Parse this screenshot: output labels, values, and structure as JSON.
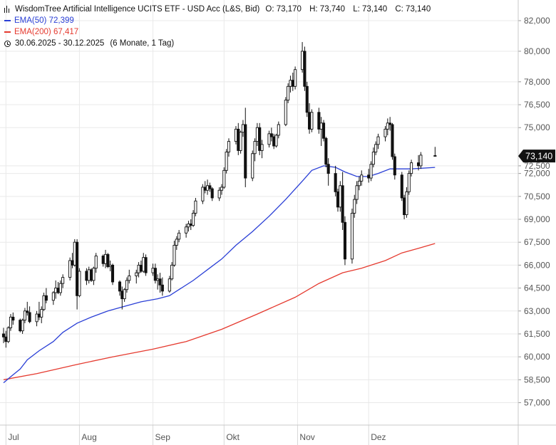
{
  "legend": {
    "instrument": "WisdomTree Artificial Intelligence UCITS ETF - USD Acc (L&S, Bid)",
    "ohlc": {
      "open": "O: 73,170",
      "high": "H: 73,740",
      "low": "L: 73,140",
      "close": "C: 73,140"
    },
    "ema50_label": "EMA(50)",
    "ema50_value": "72,399",
    "ema200_label": "EMA(200)",
    "ema200_value": "67,417",
    "date_range": "30.06.2025 - 30.12.2025",
    "period": "(6 Monate, 1 Tag)"
  },
  "colors": {
    "ema50": "#2a3fd6",
    "ema200": "#e53a2f",
    "candle": "#111111",
    "grid": "#e9e9e9",
    "price_badge": "#111111"
  },
  "icons": {
    "candles": "candlestick-icon",
    "clock": "clock-icon"
  },
  "chart_data": {
    "type": "candlestick",
    "y_axis_position": "right",
    "ylim": [
      56000,
      82700
    ],
    "y_ticks": [
      57000,
      58500,
      60000,
      61500,
      63000,
      64500,
      66000,
      67500,
      69000,
      70500,
      72000,
      72500,
      75000,
      76500,
      78000,
      80000,
      82000
    ],
    "y_tick_labels": [
      "57,000",
      "58,500",
      "60,000",
      "61,500",
      "63,000",
      "64,500",
      "66,000",
      "67,500",
      "69,000",
      "70,500",
      "72,000",
      "72,500",
      "75,000",
      "76,500",
      "78,000",
      "80,000",
      "82,000"
    ],
    "x_ticks": [
      "2025-07-01",
      "2025-08-01",
      "2025-09-01",
      "2025-10-01",
      "2025-11-01",
      "2025-12-01"
    ],
    "x_tick_labels": [
      "Jul",
      "Aug",
      "Sep",
      "Okt",
      "Nov",
      "Dez"
    ],
    "x_range": [
      "2025-06-30",
      "2025-12-31"
    ],
    "last_price": 73140,
    "last_price_label": "73,140",
    "grid": true,
    "candles_ohlc": [
      [
        "2025-06-30",
        61500,
        61900,
        60900,
        61300
      ],
      [
        "2025-07-01",
        61300,
        61700,
        60600,
        61000
      ],
      [
        "2025-07-02",
        61000,
        62000,
        60900,
        61900
      ],
      [
        "2025-07-03",
        61900,
        62800,
        61700,
        62600
      ],
      [
        "2025-07-04",
        62600,
        62900,
        62100,
        62400
      ],
      [
        "2025-07-07",
        62400,
        62500,
        61600,
        61700
      ],
      [
        "2025-07-08",
        61700,
        62500,
        61500,
        62400
      ],
      [
        "2025-07-09",
        62400,
        63200,
        62200,
        63000
      ],
      [
        "2025-07-10",
        63000,
        63600,
        62700,
        62900
      ],
      [
        "2025-07-11",
        62900,
        63300,
        62200,
        62300
      ],
      [
        "2025-07-14",
        62300,
        63000,
        62000,
        62800
      ],
      [
        "2025-07-15",
        62800,
        63600,
        62400,
        62600
      ],
      [
        "2025-07-16",
        62600,
        63300,
        62200,
        63100
      ],
      [
        "2025-07-17",
        63100,
        64200,
        63000,
        64000
      ],
      [
        "2025-07-18",
        64000,
        64500,
        63500,
        63700
      ],
      [
        "2025-07-21",
        63700,
        64300,
        63400,
        64200
      ],
      [
        "2025-07-22",
        64200,
        65000,
        63800,
        64500
      ],
      [
        "2025-07-23",
        64500,
        64900,
        64100,
        64200
      ],
      [
        "2025-07-24",
        64200,
        65000,
        64000,
        64800
      ],
      [
        "2025-07-25",
        64800,
        65400,
        64500,
        65200
      ],
      [
        "2025-07-28",
        65200,
        66500,
        65000,
        66300
      ],
      [
        "2025-07-29",
        66300,
        66800,
        65800,
        66000
      ],
      [
        "2025-07-30",
        66000,
        67700,
        65900,
        67500
      ],
      [
        "2025-07-31",
        67500,
        67700,
        63100,
        64000
      ],
      [
        "2025-08-01",
        64000,
        65800,
        63900,
        65600
      ],
      [
        "2025-08-04",
        65600,
        65800,
        64700,
        65000
      ],
      [
        "2025-08-05",
        65000,
        65900,
        64800,
        65700
      ],
      [
        "2025-08-06",
        65700,
        65800,
        64900,
        65000
      ],
      [
        "2025-08-07",
        65000,
        65900,
        64700,
        65800
      ],
      [
        "2025-08-08",
        65800,
        66800,
        65500,
        66600
      ],
      [
        "2025-08-11",
        66600,
        66700,
        65900,
        66100
      ],
      [
        "2025-08-12",
        66100,
        67000,
        65800,
        66700
      ],
      [
        "2025-08-13",
        66700,
        66800,
        65800,
        65900
      ],
      [
        "2025-08-14",
        65900,
        66300,
        65600,
        66000
      ],
      [
        "2025-08-15",
        66000,
        66100,
        64700,
        64900
      ],
      [
        "2025-08-18",
        64900,
        65000,
        64000,
        64300
      ],
      [
        "2025-08-19",
        64300,
        64600,
        63100,
        63800
      ],
      [
        "2025-08-20",
        63800,
        64500,
        63600,
        64400
      ],
      [
        "2025-08-21",
        64400,
        65200,
        64200,
        65000
      ],
      [
        "2025-08-22",
        65000,
        65700,
        64800,
        65300
      ],
      [
        "2025-08-25",
        65300,
        65700,
        64800,
        65500
      ],
      [
        "2025-08-26",
        65500,
        66200,
        65200,
        66000
      ],
      [
        "2025-08-27",
        66000,
        66300,
        65500,
        65600
      ],
      [
        "2025-08-28",
        65600,
        66800,
        65500,
        66500
      ],
      [
        "2025-08-29",
        66500,
        66700,
        65300,
        65500
      ],
      [
        "2025-09-01",
        65500,
        66100,
        65300,
        65800
      ],
      [
        "2025-09-02",
        65800,
        66100,
        64800,
        65000
      ],
      [
        "2025-09-03",
        65000,
        65400,
        64400,
        65100
      ],
      [
        "2025-09-04",
        65100,
        65500,
        64200,
        64700
      ],
      [
        "2025-09-05",
        64700,
        65200,
        64000,
        64300
      ],
      [
        "2025-09-08",
        64300,
        65300,
        64200,
        65100
      ],
      [
        "2025-09-09",
        65100,
        66200,
        65000,
        66000
      ],
      [
        "2025-09-10",
        66000,
        67600,
        65900,
        67300
      ],
      [
        "2025-09-11",
        67300,
        67900,
        67000,
        67700
      ],
      [
        "2025-09-12",
        67700,
        68300,
        67500,
        68100
      ],
      [
        "2025-09-15",
        68100,
        68700,
        67800,
        68500
      ],
      [
        "2025-09-16",
        68500,
        68900,
        68200,
        68700
      ],
      [
        "2025-09-17",
        68700,
        69000,
        68300,
        68600
      ],
      [
        "2025-09-18",
        68600,
        69600,
        68500,
        69400
      ],
      [
        "2025-09-19",
        69400,
        70400,
        69200,
        70200
      ],
      [
        "2025-09-22",
        70200,
        71300,
        70000,
        71100
      ],
      [
        "2025-09-23",
        71100,
        71500,
        70700,
        70900
      ],
      [
        "2025-09-24",
        70900,
        71600,
        70600,
        71200
      ],
      [
        "2025-09-25",
        71200,
        71400,
        70800,
        71000
      ],
      [
        "2025-09-26",
        71000,
        71100,
        70200,
        70400
      ],
      [
        "2025-09-29",
        70400,
        71100,
        70200,
        70900
      ],
      [
        "2025-09-30",
        70900,
        71300,
        70600,
        71100
      ],
      [
        "2025-10-01",
        71100,
        72400,
        71000,
        72200
      ],
      [
        "2025-10-02",
        72200,
        73600,
        72000,
        73400
      ],
      [
        "2025-10-03",
        73400,
        74300,
        73100,
        74100
      ],
      [
        "2025-10-06",
        74100,
        75100,
        73900,
        74900
      ],
      [
        "2025-10-07",
        74900,
        75300,
        73200,
        73500
      ],
      [
        "2025-10-08",
        73500,
        74800,
        73300,
        74700
      ],
      [
        "2025-10-09",
        74700,
        75500,
        74400,
        75200
      ],
      [
        "2025-10-10",
        75200,
        76300,
        71100,
        71700
      ],
      [
        "2025-10-13",
        71700,
        73500,
        71500,
        73300
      ],
      [
        "2025-10-14",
        73300,
        74300,
        72800,
        74100
      ],
      [
        "2025-10-15",
        74100,
        75300,
        73800,
        75000
      ],
      [
        "2025-10-16",
        75000,
        75300,
        73200,
        73500
      ],
      [
        "2025-10-17",
        73500,
        74200,
        73000,
        73900
      ],
      [
        "2025-10-20",
        73900,
        74800,
        73700,
        74600
      ],
      [
        "2025-10-21",
        74600,
        75000,
        74100,
        74400
      ],
      [
        "2025-10-22",
        74400,
        74600,
        73600,
        73800
      ],
      [
        "2025-10-23",
        73800,
        74600,
        73700,
        74500
      ],
      [
        "2025-10-24",
        74500,
        75400,
        74300,
        75200
      ],
      [
        "2025-10-27",
        75200,
        77000,
        75100,
        76800
      ],
      [
        "2025-10-28",
        76800,
        77900,
        76600,
        77700
      ],
      [
        "2025-10-29",
        77700,
        78400,
        77300,
        78100
      ],
      [
        "2025-10-30",
        78100,
        78600,
        77400,
        77700
      ],
      [
        "2025-10-31",
        77700,
        79000,
        77500,
        78800
      ],
      [
        "2025-11-03",
        78800,
        80600,
        78600,
        80000
      ],
      [
        "2025-11-04",
        80000,
        80300,
        77400,
        77700
      ],
      [
        "2025-11-05",
        77700,
        78000,
        75700,
        76000
      ],
      [
        "2025-11-06",
        76000,
        76600,
        74600,
        74900
      ],
      [
        "2025-11-07",
        74900,
        76200,
        74700,
        76000
      ],
      [
        "2025-11-10",
        76000,
        76300,
        74600,
        74900
      ],
      [
        "2025-11-11",
        74900,
        75700,
        73800,
        75300
      ],
      [
        "2025-11-12",
        75300,
        75500,
        74100,
        74300
      ],
      [
        "2025-11-13",
        74300,
        74400,
        72400,
        72600
      ],
      [
        "2025-11-14",
        72600,
        73000,
        71200,
        72000
      ],
      [
        "2025-11-17",
        72000,
        72500,
        70500,
        70800
      ],
      [
        "2025-11-18",
        70800,
        71000,
        69500,
        69800
      ],
      [
        "2025-11-19",
        69800,
        71500,
        69500,
        71200
      ],
      [
        "2025-11-20",
        71200,
        72100,
        68300,
        68800
      ],
      [
        "2025-11-21",
        68800,
        69200,
        66000,
        66400
      ],
      [
        "2025-11-24",
        66400,
        69700,
        66100,
        69400
      ],
      [
        "2025-11-25",
        69400,
        70600,
        69100,
        70300
      ],
      [
        "2025-11-26",
        70300,
        71500,
        70000,
        71200
      ],
      [
        "2025-11-27",
        71200,
        71800,
        70900,
        71500
      ],
      [
        "2025-11-28",
        71500,
        72200,
        71200,
        71900
      ],
      [
        "2025-12-01",
        71900,
        72300,
        71400,
        71700
      ],
      [
        "2025-12-02",
        71700,
        72800,
        71500,
        72600
      ],
      [
        "2025-12-03",
        72600,
        73700,
        72400,
        73400
      ],
      [
        "2025-12-04",
        73400,
        74100,
        73200,
        73900
      ],
      [
        "2025-12-05",
        73900,
        74600,
        73600,
        74400
      ],
      [
        "2025-12-08",
        74400,
        75100,
        74100,
        74900
      ],
      [
        "2025-12-09",
        74900,
        75600,
        74500,
        75300
      ],
      [
        "2025-12-10",
        75300,
        75700,
        74800,
        75200
      ],
      [
        "2025-12-11",
        75200,
        75300,
        72900,
        73100
      ],
      [
        "2025-12-12",
        73100,
        73300,
        71600,
        71900
      ],
      [
        "2025-12-15",
        71900,
        72100,
        70200,
        70400
      ],
      [
        "2025-12-16",
        70400,
        70600,
        69000,
        69300
      ],
      [
        "2025-12-17",
        69300,
        71100,
        69100,
        70800
      ],
      [
        "2025-12-18",
        70800,
        72200,
        70600,
        72000
      ],
      [
        "2025-12-19",
        72000,
        72900,
        71800,
        72700
      ],
      [
        "2025-12-22",
        72700,
        73200,
        72200,
        72500
      ],
      [
        "2025-12-23",
        72500,
        73400,
        72300,
        73200
      ],
      [
        "2025-12-29",
        73170,
        73740,
        73140,
        73140
      ]
    ],
    "ema50": [
      [
        "2025-06-30",
        58300
      ],
      [
        "2025-07-03",
        58700
      ],
      [
        "2025-07-07",
        59200
      ],
      [
        "2025-07-10",
        59800
      ],
      [
        "2025-07-15",
        60400
      ],
      [
        "2025-07-21",
        61000
      ],
      [
        "2025-07-25",
        61600
      ],
      [
        "2025-07-31",
        62200
      ],
      [
        "2025-08-06",
        62600
      ],
      [
        "2025-08-13",
        63000
      ],
      [
        "2025-08-20",
        63300
      ],
      [
        "2025-08-27",
        63600
      ],
      [
        "2025-09-03",
        63800
      ],
      [
        "2025-09-08",
        64000
      ],
      [
        "2025-09-12",
        64400
      ],
      [
        "2025-09-18",
        65000
      ],
      [
        "2025-09-24",
        65700
      ],
      [
        "2025-09-30",
        66400
      ],
      [
        "2025-10-06",
        67300
      ],
      [
        "2025-10-13",
        68200
      ],
      [
        "2025-10-20",
        69200
      ],
      [
        "2025-10-27",
        70300
      ],
      [
        "2025-11-03",
        71500
      ],
      [
        "2025-11-07",
        72200
      ],
      [
        "2025-11-12",
        72500
      ],
      [
        "2025-11-17",
        72400
      ],
      [
        "2025-11-21",
        72100
      ],
      [
        "2025-11-26",
        71800
      ],
      [
        "2025-12-01",
        71800
      ],
      [
        "2025-12-05",
        72000
      ],
      [
        "2025-12-10",
        72300
      ],
      [
        "2025-12-15",
        72300
      ],
      [
        "2025-12-19",
        72300
      ],
      [
        "2025-12-29",
        72399
      ]
    ],
    "ema200": [
      [
        "2025-06-30",
        58500
      ],
      [
        "2025-07-14",
        58900
      ],
      [
        "2025-07-31",
        59500
      ],
      [
        "2025-08-15",
        60000
      ],
      [
        "2025-09-01",
        60500
      ],
      [
        "2025-09-15",
        61000
      ],
      [
        "2025-09-30",
        61800
      ],
      [
        "2025-10-15",
        62800
      ],
      [
        "2025-10-31",
        63900
      ],
      [
        "2025-11-10",
        64800
      ],
      [
        "2025-11-20",
        65500
      ],
      [
        "2025-11-28",
        65800
      ],
      [
        "2025-12-08",
        66300
      ],
      [
        "2025-12-15",
        66800
      ],
      [
        "2025-12-22",
        67100
      ],
      [
        "2025-12-29",
        67417
      ]
    ]
  }
}
